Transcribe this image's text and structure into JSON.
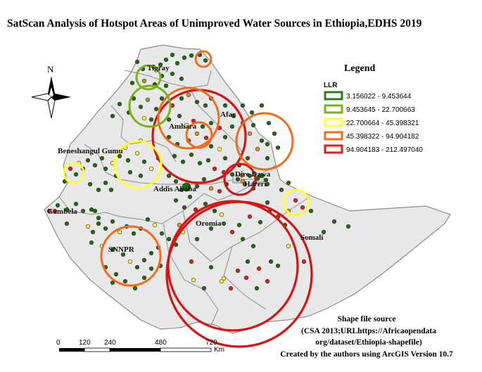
{
  "title": "SatScan Analysis of Hotspot Areas  of Unimproved Water Sources in Ethiopia,EDHS 2019",
  "north_label": "N",
  "legend": {
    "title": "Legend",
    "field": "LLR",
    "classes": [
      {
        "label": "3.156022 - 9.453644",
        "color": "#2e7d1a"
      },
      {
        "label": "9.453645 - 22.700663",
        "color": "#7ab317"
      },
      {
        "label": "22.700664 - 45.398321",
        "color": "#ffff33"
      },
      {
        "label": "45.398322 - 94.904182",
        "color": "#f26b1d"
      },
      {
        "label": "94.904183 - 212.497040",
        "color": "#dd1c1c"
      }
    ]
  },
  "regions": [
    "Tigray",
    "Afar",
    "Amhara",
    "Beneshangul Gumu",
    "Dire Dawa",
    "Hareri",
    "Addis Ababa",
    "Gambela",
    "Oromia",
    "Somali",
    "SNNPR"
  ],
  "scale_bar": {
    "ticks": [
      "0",
      "120",
      "240",
      "480",
      "720"
    ],
    "unit": "Km"
  },
  "source_note": [
    "Shape file source",
    "(CSA 2013;URLhttps://Africaopendata",
    "org/dataset/Ethiopia-shapefile)",
    "Created by the authors using ArcGIS Version 10.7"
  ],
  "colors": {
    "fill": "#e8e8e8",
    "border": "#8c8c8c",
    "point_dark_green": "#1f6a12",
    "point_yellow": "#ffff40",
    "point_red": "#dd1c1c",
    "point_orange": "#f08a1c"
  }
}
